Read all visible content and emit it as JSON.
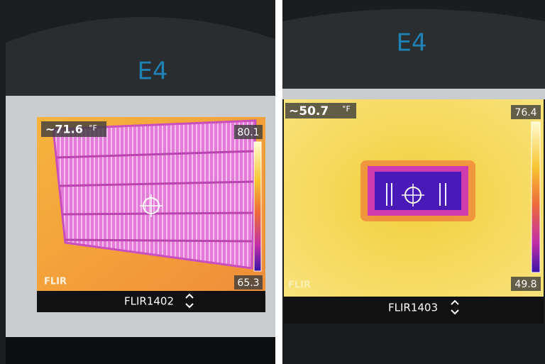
{
  "panels": [
    {
      "brand": "E4",
      "spot": "~71.6",
      "unit": "°F",
      "max": "80.1",
      "min": "65.3",
      "logo": "FLIR",
      "file": "FLIR1402"
    },
    {
      "brand": "E4",
      "spot": "~50.7",
      "unit": "°F",
      "max": "76.4",
      "min": "49.8",
      "logo": "FLIR",
      "file": "FLIR1403"
    }
  ]
}
